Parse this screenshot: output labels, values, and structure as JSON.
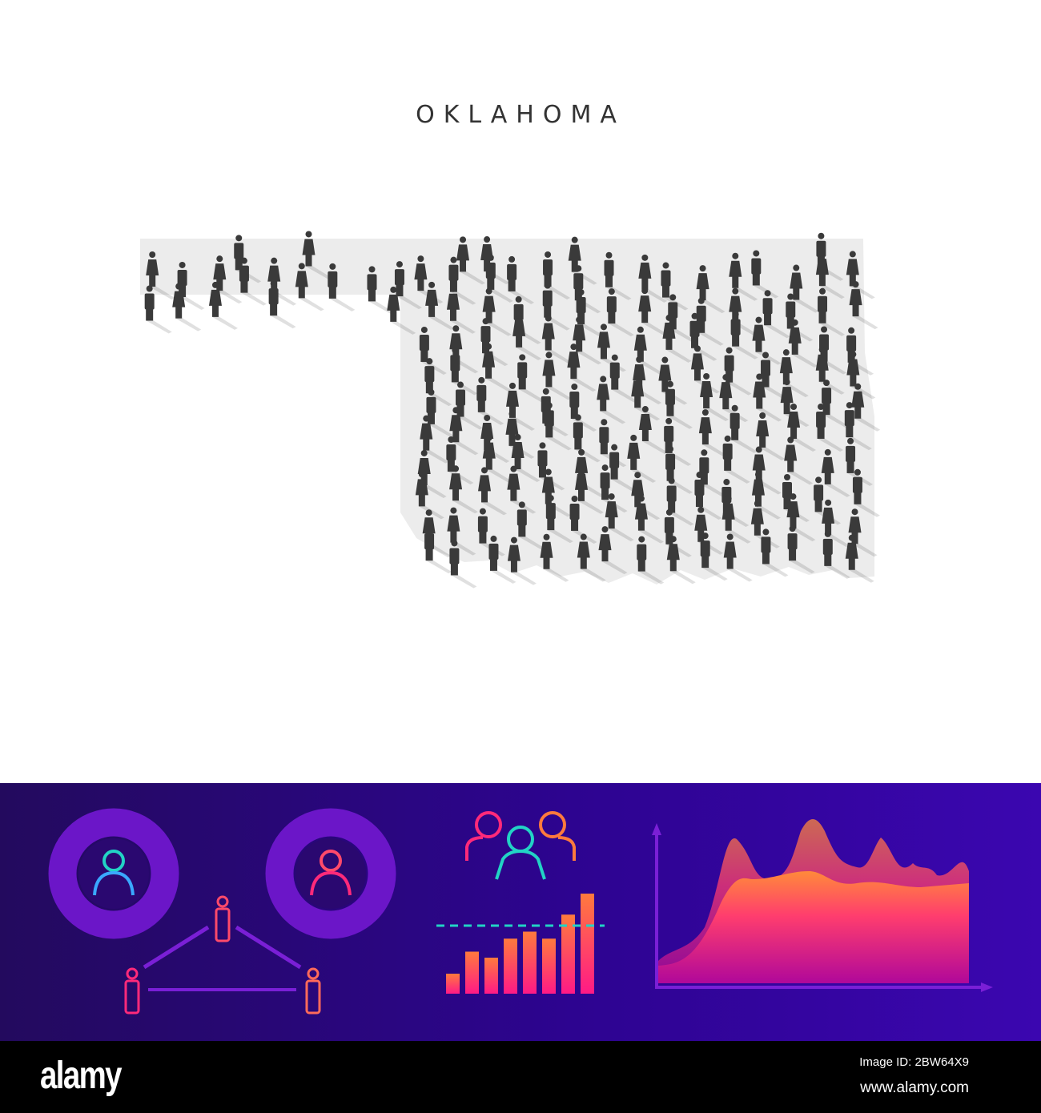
{
  "title": "OKLAHOMA",
  "figure": {
    "person_color": "#3a3a3a",
    "map_fill": "#ececec"
  },
  "infographic": {
    "background_colors": [
      "#230a5e",
      "#3b06b0"
    ],
    "accent_colors": {
      "teal": "#22d3c5",
      "pink": "#ff2a7a",
      "orange": "#ff7a3d",
      "purple": "#7a1fd6"
    },
    "bar_levels": [
      0.2,
      0.42,
      0.36,
      0.55,
      0.62,
      0.55,
      0.79,
      1.0
    ],
    "icons": [
      "person-ring-teal",
      "person-ring-pink",
      "people-group",
      "person-network",
      "bar-chart",
      "area-chart"
    ]
  },
  "footer": {
    "logo": "alamy",
    "image_id": "Image ID: 2BW64X9",
    "site": "www.alamy.com"
  }
}
